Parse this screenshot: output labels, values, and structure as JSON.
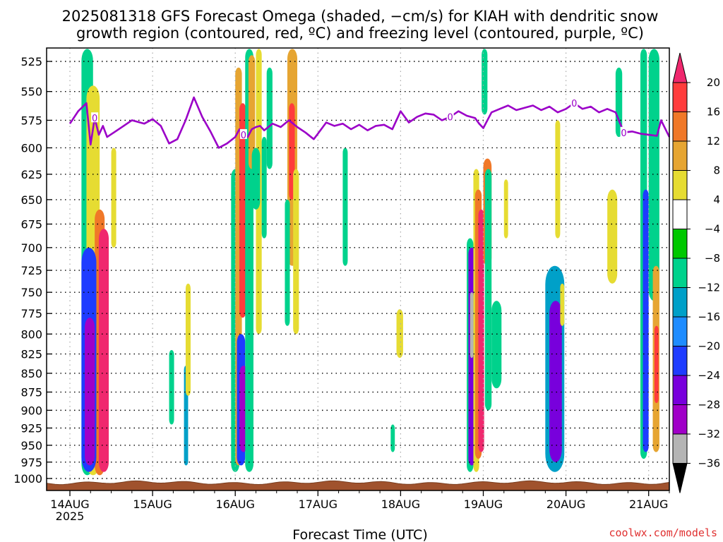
{
  "chart_data": {
    "type": "heatmap",
    "title_lines": [
      "2025081318 GFS Forecast Omega (shaded, −cm/s) for KIAH with dendritic snow",
      "growth region (contoured, red, ºC) and freezing level (contoured, purple, ºC)"
    ],
    "xlabel": "Forecast Time (UTC)",
    "ylabel": "",
    "x_ticks": [
      "14AUG",
      "15AUG",
      "16AUG",
      "17AUG",
      "18AUG",
      "19AUG",
      "20AUG",
      "21AUG"
    ],
    "x_year": "2025",
    "xlim_days": [
      0,
      7.25
    ],
    "y_ticks": [
      525,
      550,
      575,
      600,
      625,
      650,
      675,
      700,
      725,
      750,
      775,
      800,
      825,
      850,
      875,
      900,
      925,
      950,
      975,
      1000
    ],
    "ylim_hpa": [
      1008,
      515
    ],
    "grid": true,
    "colorbar": {
      "labels": [
        "20",
        "16",
        "12",
        "8",
        "4",
        "−4",
        "−8",
        "−12",
        "−16",
        "−20",
        "−24",
        "−28",
        "−32",
        "−36"
      ],
      "colors": [
        "#f0286e",
        "#ff3c3c",
        "#f07828",
        "#e6a532",
        "#e6dc32",
        "#ffffff",
        "#00c800",
        "#00d28c",
        "#00a0c8",
        "#1e8cff",
        "#1e3cff",
        "#7800dc",
        "#a000c8",
        "#b4b4b4",
        "#000000"
      ],
      "top_arrow_color": "#f0286e",
      "bottom_arrow_color": "#000000"
    },
    "freezing_level": {
      "label": "0",
      "color": "#9b00c8",
      "t_days": [
        0,
        0.1,
        0.2,
        0.25,
        0.3,
        0.35,
        0.4,
        0.45,
        0.55,
        0.65,
        0.75,
        0.9,
        1.0,
        1.1,
        1.2,
        1.3,
        1.4,
        1.5,
        1.6,
        1.7,
        1.8,
        1.9,
        2.0,
        2.05,
        2.1,
        2.15,
        2.2,
        2.25,
        2.3,
        2.35,
        2.45,
        2.55,
        2.65,
        2.75,
        2.85,
        2.95,
        3.0,
        3.1,
        3.2,
        3.3,
        3.4,
        3.5,
        3.6,
        3.7,
        3.8,
        3.9,
        4.0,
        4.1,
        4.2,
        4.3,
        4.4,
        4.5,
        4.6,
        4.7,
        4.8,
        4.9,
        4.95,
        5.0,
        5.1,
        5.2,
        5.3,
        5.4,
        5.5,
        5.6,
        5.7,
        5.8,
        5.9,
        6.0,
        6.1,
        6.2,
        6.3,
        6.4,
        6.5,
        6.6,
        6.7,
        6.8,
        6.9,
        7.0,
        7.1,
        7.15,
        7.25
      ],
      "p_hpa": [
        578,
        567,
        560,
        597,
        573,
        588,
        580,
        590,
        585,
        580,
        575,
        578,
        574,
        580,
        596,
        592,
        575,
        555,
        572,
        585,
        600,
        596,
        590,
        583,
        588,
        590,
        583,
        581,
        580,
        584,
        578,
        581,
        575,
        581,
        586,
        592,
        587,
        577,
        580,
        578,
        583,
        579,
        584,
        580,
        579,
        583,
        567,
        577,
        572,
        569,
        570,
        575,
        572,
        567,
        571,
        573,
        578,
        582,
        568,
        565,
        562,
        566,
        564,
        562,
        566,
        563,
        568,
        565,
        560,
        565,
        563,
        568,
        565,
        568,
        586,
        585,
        587,
        588,
        589,
        575,
        590
      ]
    },
    "omega_cells": [
      {
        "t0": 0.14,
        "t1": 0.28,
        "p0": 515,
        "p1": 995,
        "value": -10
      },
      {
        "t0": 0.2,
        "t1": 0.36,
        "p0": 545,
        "p1": 995,
        "value": 6
      },
      {
        "t0": 0.3,
        "t1": 0.42,
        "p0": 660,
        "p1": 995,
        "value": 14
      },
      {
        "t0": 0.35,
        "t1": 0.47,
        "p0": 680,
        "p1": 990,
        "value": 22
      },
      {
        "t0": 0.14,
        "t1": 0.32,
        "p0": 700,
        "p1": 990,
        "value": -22
      },
      {
        "t0": 0.18,
        "t1": 0.3,
        "p0": 780,
        "p1": 980,
        "value": -30
      },
      {
        "t0": 0.5,
        "t1": 0.56,
        "p0": 600,
        "p1": 700,
        "value": 6
      },
      {
        "t0": 1.2,
        "t1": 1.26,
        "p0": 820,
        "p1": 920,
        "value": -10
      },
      {
        "t0": 1.38,
        "t1": 1.43,
        "p0": 840,
        "p1": 980,
        "value": -14
      },
      {
        "t0": 1.4,
        "t1": 1.46,
        "p0": 740,
        "p1": 880,
        "value": 6
      },
      {
        "t0": 1.95,
        "t1": 2.05,
        "p0": 620,
        "p1": 990,
        "value": -10
      },
      {
        "t0": 2.0,
        "t1": 2.08,
        "p0": 530,
        "p1": 980,
        "value": 10
      },
      {
        "t0": 2.02,
        "t1": 2.12,
        "p0": 800,
        "p1": 980,
        "value": -22
      },
      {
        "t0": 2.05,
        "t1": 2.15,
        "p0": 840,
        "p1": 960,
        "value": -30
      },
      {
        "t0": 2.05,
        "t1": 2.13,
        "p0": 560,
        "p1": 780,
        "value": 18
      },
      {
        "t0": 2.12,
        "t1": 2.22,
        "p0": 515,
        "p1": 990,
        "value": -8
      },
      {
        "t0": 2.16,
        "t1": 2.24,
        "p0": 520,
        "p1": 620,
        "value": 10
      },
      {
        "t0": 2.25,
        "t1": 2.32,
        "p0": 515,
        "p1": 800,
        "value": 6
      },
      {
        "t0": 2.32,
        "t1": 2.38,
        "p0": 590,
        "p1": 690,
        "value": -8
      },
      {
        "t0": 2.38,
        "t1": 2.45,
        "p0": 530,
        "p1": 620,
        "value": -8
      },
      {
        "t0": 2.63,
        "t1": 2.75,
        "p0": 515,
        "p1": 720,
        "value": 8
      },
      {
        "t0": 2.65,
        "t1": 2.72,
        "p0": 560,
        "p1": 650,
        "value": 18
      },
      {
        "t0": 2.7,
        "t1": 2.77,
        "p0": 620,
        "p1": 800,
        "value": 6
      },
      {
        "t0": 2.2,
        "t1": 2.3,
        "p0": 600,
        "p1": 660,
        "value": -8
      },
      {
        "t0": 2.6,
        "t1": 2.66,
        "p0": 650,
        "p1": 790,
        "value": -8
      },
      {
        "t0": 3.3,
        "t1": 3.36,
        "p0": 600,
        "p1": 720,
        "value": -8
      },
      {
        "t0": 3.95,
        "t1": 4.03,
        "p0": 770,
        "p1": 830,
        "value": 6
      },
      {
        "t0": 3.88,
        "t1": 3.93,
        "p0": 920,
        "p1": 960,
        "value": -8
      },
      {
        "t0": 4.8,
        "t1": 4.88,
        "p0": 690,
        "p1": 990,
        "value": -10
      },
      {
        "t0": 4.82,
        "t1": 4.9,
        "p0": 700,
        "p1": 980,
        "value": -26
      },
      {
        "t0": 4.88,
        "t1": 4.95,
        "p0": 620,
        "p1": 990,
        "value": 6
      },
      {
        "t0": 4.9,
        "t1": 4.98,
        "p0": 640,
        "p1": 970,
        "value": 14
      },
      {
        "t0": 4.94,
        "t1": 5.01,
        "p0": 660,
        "p1": 960,
        "value": 22
      },
      {
        "t0": 4.84,
        "t1": 4.88,
        "p0": 750,
        "p1": 830,
        "value": -34
      },
      {
        "t0": 5.0,
        "t1": 5.1,
        "p0": 610,
        "p1": 720,
        "value": 12
      },
      {
        "t0": 4.98,
        "t1": 5.05,
        "p0": 515,
        "p1": 570,
        "value": -10
      },
      {
        "t0": 5.02,
        "t1": 5.1,
        "p0": 620,
        "p1": 900,
        "value": -8
      },
      {
        "t0": 5.1,
        "t1": 5.22,
        "p0": 760,
        "p1": 870,
        "value": -8
      },
      {
        "t0": 5.25,
        "t1": 5.3,
        "p0": 630,
        "p1": 690,
        "value": 6
      },
      {
        "t0": 5.75,
        "t1": 5.98,
        "p0": 720,
        "p1": 990,
        "value": -14
      },
      {
        "t0": 5.8,
        "t1": 5.95,
        "p0": 760,
        "p1": 975,
        "value": -26
      },
      {
        "t0": 5.87,
        "t1": 5.93,
        "p0": 575,
        "p1": 690,
        "value": 6
      },
      {
        "t0": 5.93,
        "t1": 5.98,
        "p0": 740,
        "p1": 790,
        "value": 6
      },
      {
        "t0": 6.5,
        "t1": 6.62,
        "p0": 640,
        "p1": 740,
        "value": 6
      },
      {
        "t0": 6.6,
        "t1": 6.68,
        "p0": 530,
        "p1": 590,
        "value": -8
      },
      {
        "t0": 6.9,
        "t1": 6.98,
        "p0": 515,
        "p1": 970,
        "value": -10
      },
      {
        "t0": 6.93,
        "t1": 7.0,
        "p0": 640,
        "p1": 960,
        "value": -22
      },
      {
        "t0": 7.0,
        "t1": 7.13,
        "p0": 515,
        "p1": 760,
        "value": -8
      },
      {
        "t0": 7.05,
        "t1": 7.13,
        "p0": 720,
        "p1": 960,
        "value": 8
      },
      {
        "t0": 7.07,
        "t1": 7.12,
        "p0": 790,
        "p1": 890,
        "value": 18
      }
    ]
  },
  "credit": "coolwx.com/models"
}
